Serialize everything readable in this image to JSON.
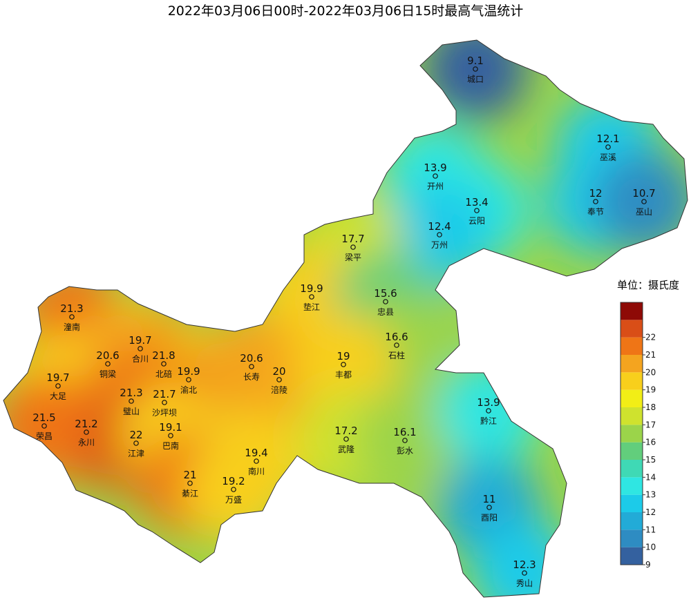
{
  "title": "2022年03月06日00时-2022年03月06日15时最高气温统计",
  "legend": {
    "title": "单位：摄氏度",
    "ticks": [
      9,
      10,
      11,
      12,
      13,
      14,
      15,
      16,
      17,
      18,
      19,
      20,
      21,
      22
    ],
    "colors": [
      "#34619f",
      "#2e8cc2",
      "#22abd7",
      "#1ccbe9",
      "#2fe6e2",
      "#3fd9b5",
      "#62ce7c",
      "#9bd44a",
      "#cfe22e",
      "#f2ee16",
      "#f8cf1c",
      "#f4a41f",
      "#ef7516",
      "#d94e17",
      "#8e0a06"
    ]
  },
  "stations": [
    {
      "name": "城口",
      "value": 9.1
    },
    {
      "name": "巫溪",
      "value": 12.1
    },
    {
      "name": "开州",
      "value": 13.9
    },
    {
      "name": "云阳",
      "value": 13.4
    },
    {
      "name": "奉节",
      "value": 12
    },
    {
      "name": "巫山",
      "value": 10.7
    },
    {
      "name": "万州",
      "value": 12.4
    },
    {
      "name": "梁平",
      "value": 17.7
    },
    {
      "name": "垫江",
      "value": 19.9
    },
    {
      "name": "忠县",
      "value": 15.6
    },
    {
      "name": "石柱",
      "value": 16.6
    },
    {
      "name": "潼南",
      "value": 21.3
    },
    {
      "name": "合川",
      "value": 19.7
    },
    {
      "name": "北碚",
      "value": 21.8
    },
    {
      "name": "渝北",
      "value": 19.9
    },
    {
      "name": "铜梁",
      "value": 20.6
    },
    {
      "name": "长寿",
      "value": 20.6
    },
    {
      "name": "涪陵",
      "value": 20
    },
    {
      "name": "丰都",
      "value": 19
    },
    {
      "name": "大足",
      "value": 19.7
    },
    {
      "name": "璧山",
      "value": 21.3
    },
    {
      "name": "沙坪坝",
      "value": 21.7
    },
    {
      "name": "荣昌",
      "value": 21.5
    },
    {
      "name": "永川",
      "value": 21.2
    },
    {
      "name": "江津",
      "value": 22
    },
    {
      "name": "巴南",
      "value": 19.1
    },
    {
      "name": "南川",
      "value": 19.4
    },
    {
      "name": "武隆",
      "value": 17.2
    },
    {
      "name": "彭水",
      "value": 16.1
    },
    {
      "name": "黔江",
      "value": 13.9
    },
    {
      "name": "綦江",
      "value": 21
    },
    {
      "name": "万盛",
      "value": 19.2
    },
    {
      "name": "酉阳",
      "value": 11
    },
    {
      "name": "秀山",
      "value": 12.3
    }
  ]
}
